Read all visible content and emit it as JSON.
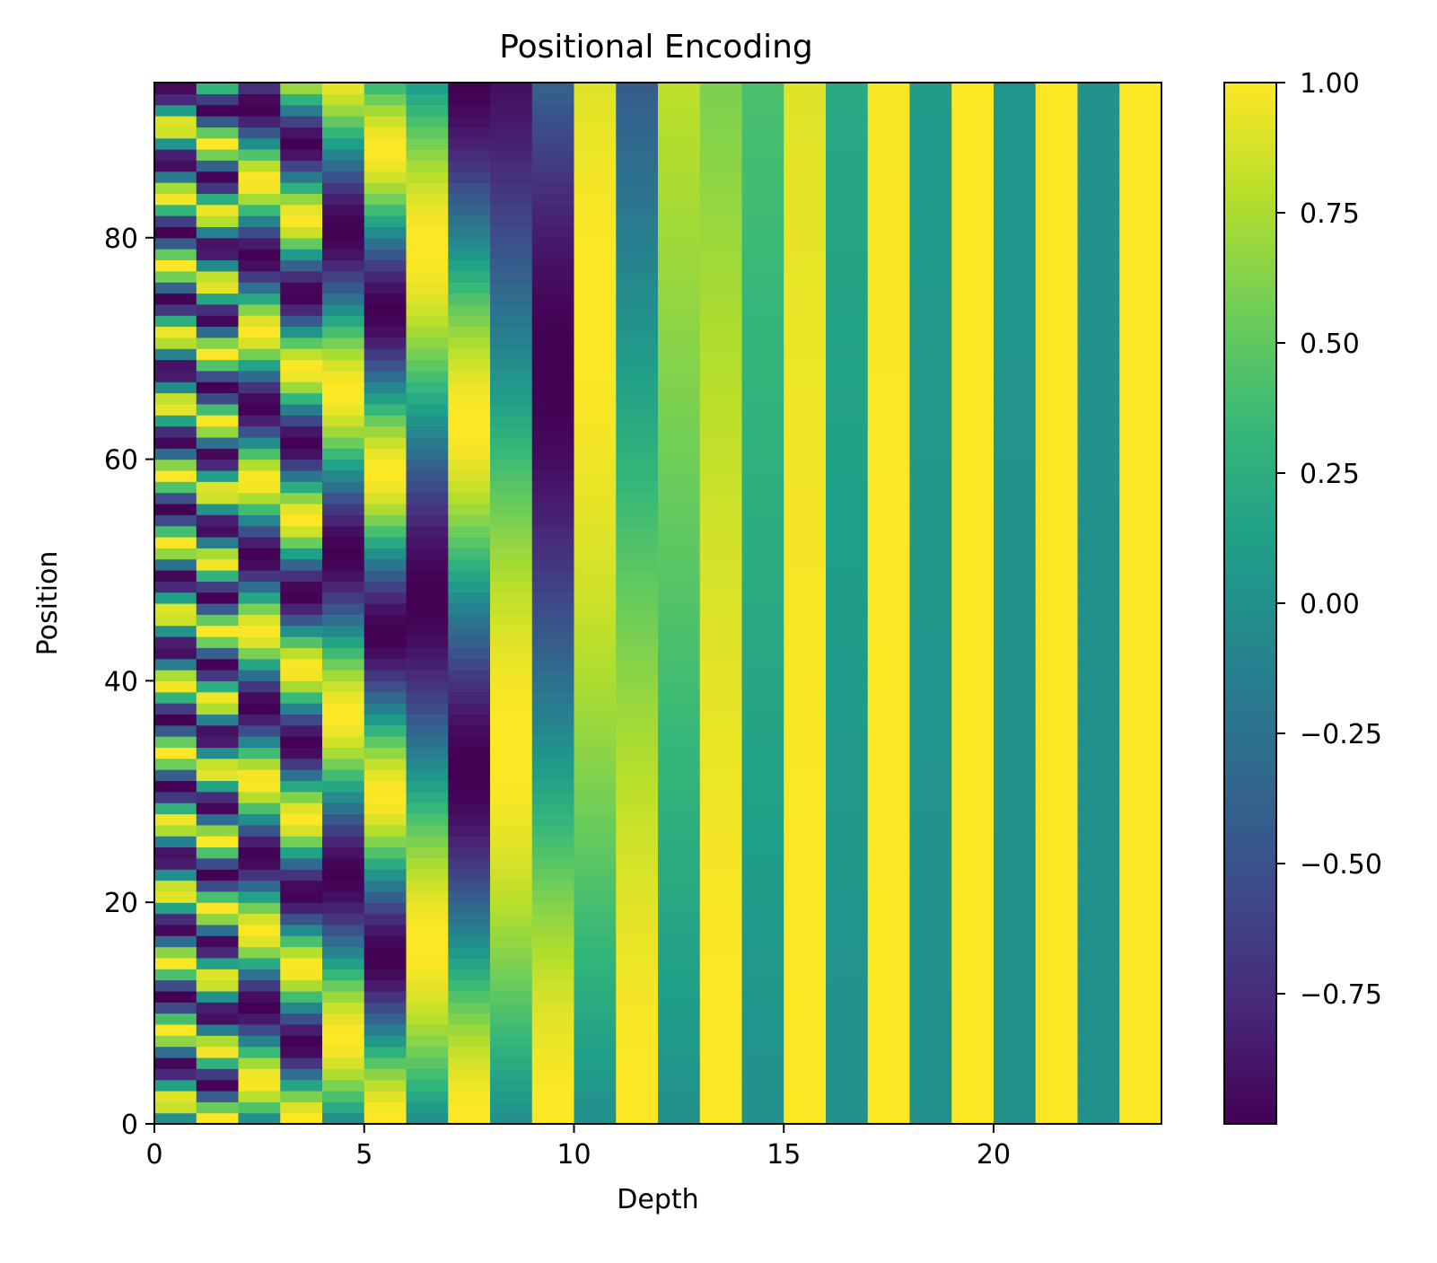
{
  "chart_data": {
    "type": "heatmap",
    "title": "Positional Encoding",
    "xlabel": "Depth",
    "ylabel": "Position",
    "xlim": [
      0,
      24
    ],
    "ylim": [
      0,
      94
    ],
    "grid": false,
    "colormap": "viridis",
    "encoding": "sinusoidal positional encoding, sin on even depth columns, cos on odd depth columns, d_model 24, base 10000",
    "rows": 94,
    "cols": 24,
    "x_ticks": [
      0,
      5,
      10,
      15,
      20
    ],
    "x_tick_labels": [
      "0",
      "5",
      "10",
      "15",
      "20"
    ],
    "y_ticks": [
      0,
      20,
      40,
      60,
      80
    ],
    "y_tick_labels": [
      "0",
      "20",
      "40",
      "60",
      "80"
    ],
    "colorbar": {
      "range": [
        -1,
        1
      ],
      "ticks": [
        1.0,
        0.75,
        0.5,
        0.25,
        0.0,
        -0.25,
        -0.5,
        -0.75
      ],
      "tick_labels": [
        "1.00",
        "0.75",
        "0.50",
        "0.25",
        "0.00",
        "−0.25",
        "−0.50",
        "−0.75"
      ]
    }
  }
}
